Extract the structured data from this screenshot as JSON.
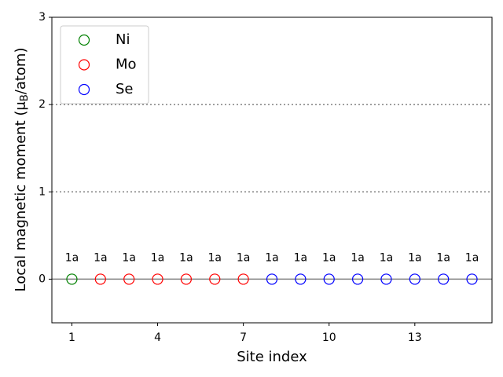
{
  "chart_data": {
    "type": "scatter",
    "xlabel": "Site index",
    "ylabel": [
      "Local magnetic moment (μ",
      "B",
      "/atom)"
    ],
    "xlim": [
      0.3,
      15.7
    ],
    "xticks": [
      1,
      4,
      7,
      10,
      13
    ],
    "ylim": [
      -0.5,
      3
    ],
    "yticks": [
      0,
      1,
      2,
      3
    ],
    "hlines": [
      {
        "y": 0,
        "style": "solid",
        "color": "#808080"
      },
      {
        "y": 1,
        "style": "dotted",
        "color": "#808080"
      },
      {
        "y": 2,
        "style": "dotted",
        "color": "#808080"
      }
    ],
    "legend": "upper left",
    "series": [
      {
        "name": "Ni",
        "color": "green",
        "x": [
          1
        ],
        "values": [
          0
        ],
        "labels": [
          "1a"
        ]
      },
      {
        "name": "Mo",
        "color": "red",
        "x": [
          2,
          3,
          4,
          5,
          6,
          7
        ],
        "values": [
          0,
          0,
          0,
          0,
          0,
          0
        ],
        "labels": [
          "1a",
          "1a",
          "1a",
          "1a",
          "1a",
          "1a"
        ]
      },
      {
        "name": "Se",
        "color": "blue",
        "x": [
          8,
          9,
          10,
          11,
          12,
          13,
          14,
          15
        ],
        "values": [
          0,
          0,
          0,
          0,
          0,
          0,
          0,
          0
        ],
        "labels": [
          "1a",
          "1a",
          "1a",
          "1a",
          "1a",
          "1a",
          "1a",
          "1a"
        ]
      }
    ]
  }
}
